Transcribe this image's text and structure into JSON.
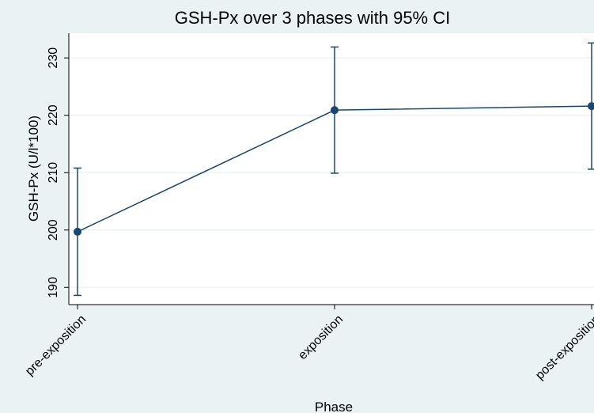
{
  "chart_data": {
    "type": "line",
    "title": "GSH-Px over 3 phases with 95% CI",
    "x_label": "Phase",
    "y_label": "GSH-Px (U/l*100)",
    "categories": [
      "pre-exposition",
      "exposition",
      "post-exposition"
    ],
    "series": [
      {
        "name": "GSH-Px",
        "color": "#1a476f",
        "values": [
          199.7,
          220.9,
          221.6
        ],
        "errors": [
          11.1,
          11.0,
          11.0
        ]
      }
    ],
    "ylim": [
      187,
      234.3
    ],
    "yticks": [
      190,
      200,
      210,
      220,
      230
    ],
    "grid": true
  }
}
